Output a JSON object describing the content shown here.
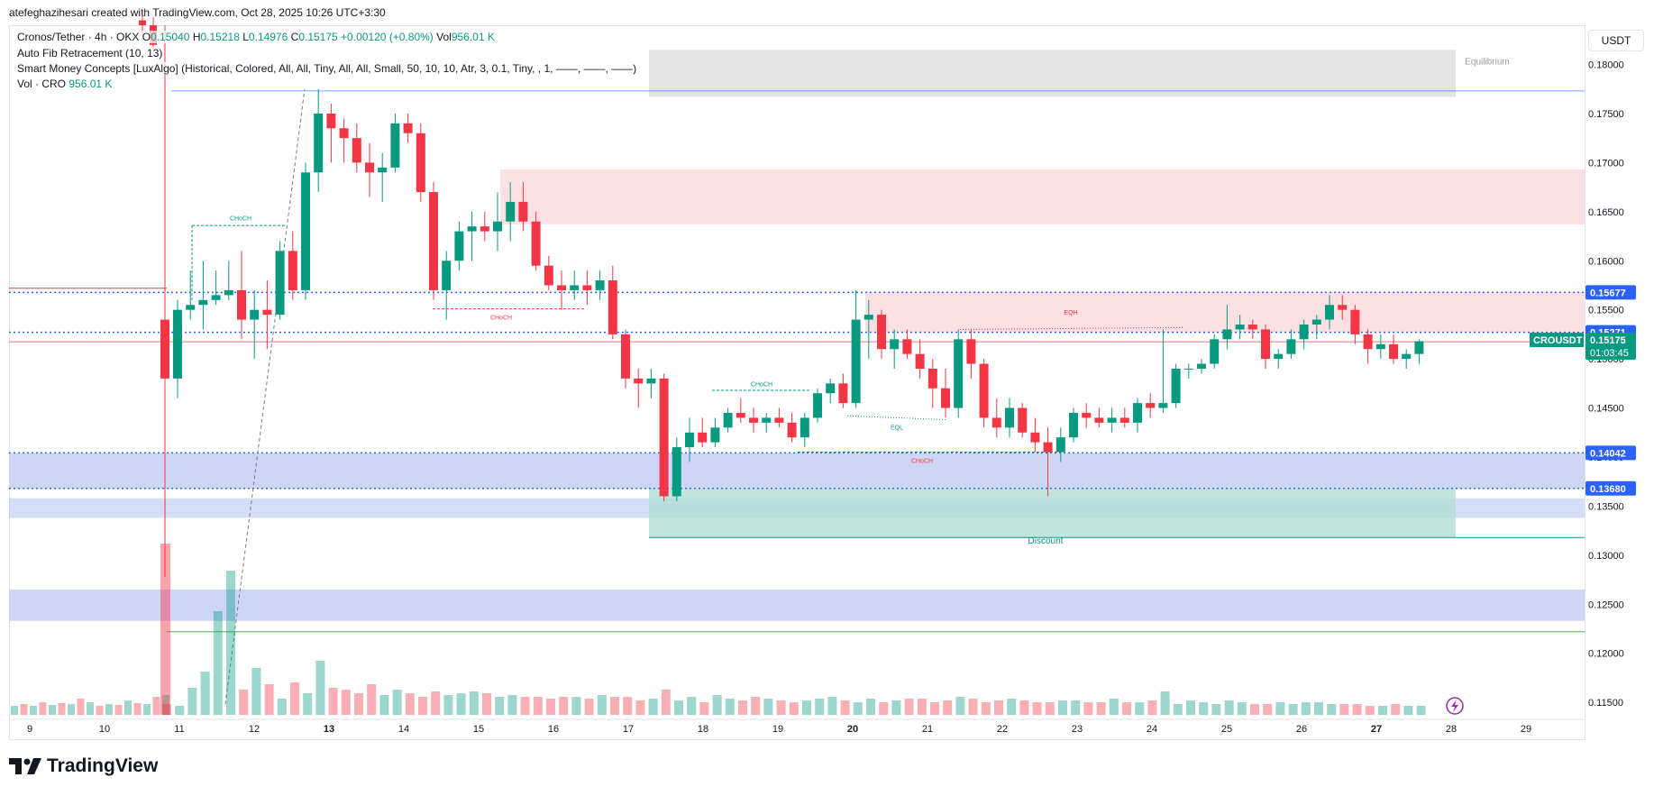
{
  "caption": "atefeghazihesari created with TradingView.com, Oct 28, 2025 10:26 UTC+3:30",
  "legend": {
    "symbol": "Cronos/Tether · 4h · OKX",
    "o_label": "O",
    "o_value": "0.15040",
    "h_label": "H",
    "h_value": "0.15218",
    "l_label": "L",
    "l_value": "0.14976",
    "c_label": "C",
    "c_value": "0.15175",
    "change": "+0.00120 (+0.80%)",
    "vol_label": "Vol",
    "vol_value": "956.01 K",
    "fib": "Auto Fib Retracement (10, 13)",
    "smc": "Smart Money Concepts [LuxAlgo] (Historical, Colored, All, All, Tiny, All, All, Small, 50, 10, 10, Atr, 3, 0.1, Tiny, , 1, ——, ——, ——)",
    "vol_cro_label": "Vol · CRO",
    "vol_cro_value": "956.01 K"
  },
  "currency": "USDT",
  "logo_text": "TradingView",
  "colors": {
    "up": "#089981",
    "down": "#f23645",
    "blue_zone": "#c5cff3",
    "red_zone": "#fde0e2",
    "discount_zone": "#b2dfd4",
    "grey_zone": "#e0e0e0"
  },
  "chart_data": {
    "type": "candlestick",
    "timeframe": "4h",
    "y_range": [
      0.114,
      0.184
    ],
    "y_ticks": [
      "0.18000",
      "0.17500",
      "0.17000",
      "0.16500",
      "0.16000",
      "0.15500",
      "0.15000",
      "0.14500",
      "0.14000",
      "0.13500",
      "0.13000",
      "0.12500",
      "0.12000",
      "0.11500"
    ],
    "x_ticks": [
      "9",
      "10",
      "11",
      "12",
      "13",
      "14",
      "15",
      "16",
      "17",
      "18",
      "19",
      "20",
      "21",
      "22",
      "23",
      "24",
      "25",
      "26",
      "27",
      "28",
      "29"
    ],
    "price_labels": [
      {
        "text": "0.15677",
        "value": 0.15677,
        "color": "#2962ff"
      },
      {
        "text": "0.15271",
        "value": 0.15271,
        "color": "#2962ff"
      },
      {
        "text": "0.14042",
        "value": 0.14042,
        "color": "#2962ff"
      },
      {
        "text": "0.13680",
        "value": 0.1368,
        "color": "#2962ff"
      }
    ],
    "last_price": {
      "symbol": "CROUSDT",
      "price": "0.15175",
      "countdown": "01:03:45",
      "value": 0.15175
    },
    "zone_labels": {
      "equilibrium": "Equilibrium",
      "discount": "Discount"
    },
    "structure_labels": {
      "choch": "CHoCH",
      "eqh": "EQH",
      "eql": "EQL"
    },
    "candles": [
      [
        0.154,
        0.185,
        0.147,
        0.148
      ],
      [
        0.148,
        0.156,
        0.146,
        0.155
      ],
      [
        0.155,
        0.159,
        0.154,
        0.1555
      ],
      [
        0.1555,
        0.16,
        0.153,
        0.156
      ],
      [
        0.156,
        0.159,
        0.1555,
        0.1565
      ],
      [
        0.1565,
        0.16,
        0.156,
        0.157
      ],
      [
        0.157,
        0.161,
        0.152,
        0.154
      ],
      [
        0.154,
        0.157,
        0.15,
        0.155
      ],
      [
        0.155,
        0.158,
        0.151,
        0.1545
      ],
      [
        0.1545,
        0.162,
        0.154,
        0.161
      ],
      [
        0.161,
        0.163,
        0.156,
        0.157
      ],
      [
        0.157,
        0.17,
        0.156,
        0.169
      ],
      [
        0.169,
        0.1775,
        0.167,
        0.175
      ],
      [
        0.175,
        0.176,
        0.17,
        0.1735
      ],
      [
        0.1735,
        0.1745,
        0.17,
        0.1725
      ],
      [
        0.1725,
        0.174,
        0.169,
        0.17
      ],
      [
        0.17,
        0.172,
        0.1665,
        0.169
      ],
      [
        0.169,
        0.171,
        0.166,
        0.1695
      ],
      [
        0.1695,
        0.175,
        0.169,
        0.174
      ],
      [
        0.174,
        0.175,
        0.172,
        0.173
      ],
      [
        0.173,
        0.174,
        0.166,
        0.167
      ],
      [
        0.167,
        0.168,
        0.156,
        0.157
      ],
      [
        0.157,
        0.161,
        0.154,
        0.16
      ],
      [
        0.16,
        0.164,
        0.159,
        0.163
      ],
      [
        0.163,
        0.165,
        0.16,
        0.1635
      ],
      [
        0.1635,
        0.165,
        0.162,
        0.163
      ],
      [
        0.163,
        0.167,
        0.161,
        0.164
      ],
      [
        0.164,
        0.168,
        0.162,
        0.166
      ],
      [
        0.166,
        0.168,
        0.163,
        0.164
      ],
      [
        0.164,
        0.165,
        0.159,
        0.1595
      ],
      [
        0.1595,
        0.1605,
        0.157,
        0.1575
      ],
      [
        0.1575,
        0.159,
        0.155,
        0.157
      ],
      [
        0.157,
        0.159,
        0.156,
        0.1575
      ],
      [
        0.1575,
        0.159,
        0.1555,
        0.157
      ],
      [
        0.157,
        0.159,
        0.156,
        0.158
      ],
      [
        0.158,
        0.1595,
        0.152,
        0.1525
      ],
      [
        0.1525,
        0.153,
        0.147,
        0.148
      ],
      [
        0.148,
        0.149,
        0.145,
        0.1475
      ],
      [
        0.1475,
        0.149,
        0.146,
        0.148
      ],
      [
        0.148,
        0.1485,
        0.1355,
        0.136
      ],
      [
        0.136,
        0.142,
        0.1355,
        0.141
      ],
      [
        0.141,
        0.144,
        0.1395,
        0.1425
      ],
      [
        0.1425,
        0.144,
        0.141,
        0.1415
      ],
      [
        0.1415,
        0.144,
        0.141,
        0.143
      ],
      [
        0.143,
        0.145,
        0.1425,
        0.1445
      ],
      [
        0.1445,
        0.146,
        0.1435,
        0.144
      ],
      [
        0.144,
        0.145,
        0.1425,
        0.1435
      ],
      [
        0.1435,
        0.1445,
        0.1425,
        0.144
      ],
      [
        0.144,
        0.145,
        0.143,
        0.1435
      ],
      [
        0.1435,
        0.1445,
        0.1415,
        0.142
      ],
      [
        0.142,
        0.1445,
        0.141,
        0.144
      ],
      [
        0.144,
        0.147,
        0.1435,
        0.1465
      ],
      [
        0.1465,
        0.148,
        0.1455,
        0.1475
      ],
      [
        0.1475,
        0.1485,
        0.145,
        0.1455
      ],
      [
        0.1455,
        0.157,
        0.145,
        0.154
      ],
      [
        0.154,
        0.156,
        0.15,
        0.1545
      ],
      [
        0.1545,
        0.155,
        0.15,
        0.151
      ],
      [
        0.151,
        0.153,
        0.149,
        0.152
      ],
      [
        0.152,
        0.153,
        0.15,
        0.1505
      ],
      [
        0.1505,
        0.152,
        0.148,
        0.149
      ],
      [
        0.149,
        0.15,
        0.145,
        0.147
      ],
      [
        0.147,
        0.149,
        0.144,
        0.145
      ],
      [
        0.145,
        0.153,
        0.144,
        0.152
      ],
      [
        0.152,
        0.153,
        0.148,
        0.1495
      ],
      [
        0.1495,
        0.15,
        0.143,
        0.144
      ],
      [
        0.144,
        0.146,
        0.142,
        0.143
      ],
      [
        0.143,
        0.146,
        0.142,
        0.145
      ],
      [
        0.145,
        0.1455,
        0.142,
        0.1425
      ],
      [
        0.1425,
        0.144,
        0.1405,
        0.1415
      ],
      [
        0.1415,
        0.143,
        0.136,
        0.1405
      ],
      [
        0.1405,
        0.143,
        0.1395,
        0.142
      ],
      [
        0.142,
        0.145,
        0.1415,
        0.1445
      ],
      [
        0.1445,
        0.1455,
        0.143,
        0.144
      ],
      [
        0.144,
        0.145,
        0.143,
        0.1435
      ],
      [
        0.1435,
        0.145,
        0.1425,
        0.144
      ],
      [
        0.144,
        0.145,
        0.143,
        0.1435
      ],
      [
        0.1435,
        0.146,
        0.1425,
        0.1455
      ],
      [
        0.1455,
        0.1465,
        0.144,
        0.145
      ],
      [
        0.145,
        0.153,
        0.1445,
        0.1455
      ],
      [
        0.1455,
        0.1495,
        0.145,
        0.149
      ],
      [
        0.149,
        0.1495,
        0.148,
        0.149
      ],
      [
        0.149,
        0.15,
        0.1485,
        0.1495
      ],
      [
        0.1495,
        0.1525,
        0.149,
        0.152
      ],
      [
        0.152,
        0.1555,
        0.151,
        0.153
      ],
      [
        0.153,
        0.1545,
        0.152,
        0.1535
      ],
      [
        0.1535,
        0.154,
        0.152,
        0.153
      ],
      [
        0.153,
        0.1535,
        0.149,
        0.15
      ],
      [
        0.15,
        0.151,
        0.149,
        0.1505
      ],
      [
        0.1505,
        0.153,
        0.15,
        0.152
      ],
      [
        0.152,
        0.154,
        0.151,
        0.1535
      ],
      [
        0.1535,
        0.1545,
        0.152,
        0.154
      ],
      [
        0.154,
        0.1565,
        0.153,
        0.1555
      ],
      [
        0.1555,
        0.1565,
        0.154,
        0.155
      ],
      [
        0.155,
        0.1555,
        0.1515,
        0.1525
      ],
      [
        0.1525,
        0.153,
        0.1495,
        0.151
      ],
      [
        0.151,
        0.1525,
        0.15,
        0.1515
      ],
      [
        0.1515,
        0.1525,
        0.1495,
        0.15
      ],
      [
        0.15,
        0.151,
        0.149,
        0.1505
      ],
      [
        0.1505,
        0.152,
        0.1495,
        0.1518
      ]
    ],
    "volumes": [
      12,
      10,
      30,
      48,
      115,
      160,
      28,
      52,
      34,
      18,
      36,
      24,
      60,
      30,
      28,
      24,
      34,
      22,
      28,
      24,
      20,
      26,
      22,
      24,
      26,
      24,
      20,
      22,
      20,
      20,
      18,
      20,
      20,
      18,
      22,
      20,
      20,
      16,
      18,
      28,
      16,
      20,
      14,
      22,
      18,
      16,
      20,
      18,
      16,
      14,
      16,
      18,
      20,
      16,
      14,
      18,
      14,
      16,
      18,
      18,
      14,
      16,
      20,
      18,
      14,
      16,
      18,
      16,
      14,
      14,
      16,
      16,
      14,
      14,
      18,
      14,
      14,
      16,
      26,
      12,
      16,
      14,
      12,
      16,
      14,
      12,
      12,
      14,
      12,
      14,
      14,
      12,
      12,
      12,
      10,
      10,
      12,
      10,
      10
    ]
  }
}
